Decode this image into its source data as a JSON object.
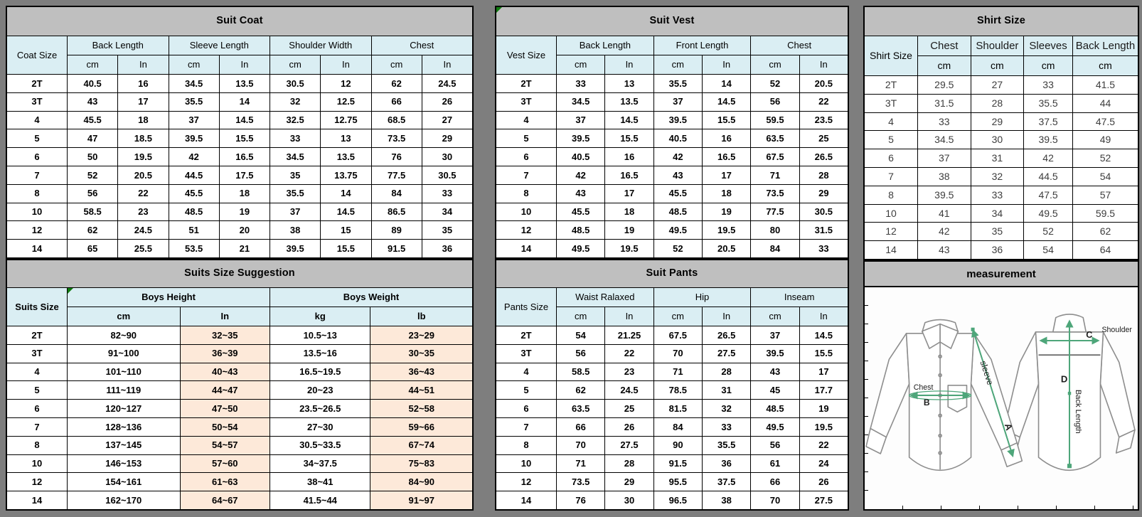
{
  "colors": {
    "page_background": "#7e7e7e",
    "title_bar": "#bfbfbf",
    "header_blue": "#daeef3",
    "highlight_peach": "#fde9d9",
    "cell_white": "#ffffff",
    "grid_line": "#000000",
    "comment_corner_green": "#0f7a0f",
    "measure_arrow_green": "#4ea67a"
  },
  "tables": {
    "suit_coat": {
      "title": "Suit Coat",
      "corner": "Coat Size",
      "groups": [
        {
          "label": "Back Length",
          "units": [
            "cm",
            "In"
          ]
        },
        {
          "label": "Sleeve Length",
          "units": [
            "cm",
            "In"
          ]
        },
        {
          "label": "Shoulder Width",
          "units": [
            "cm",
            "In"
          ]
        },
        {
          "label": "Chest",
          "units": [
            "cm",
            "In"
          ]
        }
      ],
      "rows": [
        [
          "2T",
          "40.5",
          "16",
          "34.5",
          "13.5",
          "30.5",
          "12",
          "62",
          "24.5"
        ],
        [
          "3T",
          "43",
          "17",
          "35.5",
          "14",
          "32",
          "12.5",
          "66",
          "26"
        ],
        [
          "4",
          "45.5",
          "18",
          "37",
          "14.5",
          "32.5",
          "12.75",
          "68.5",
          "27"
        ],
        [
          "5",
          "47",
          "18.5",
          "39.5",
          "15.5",
          "33",
          "13",
          "73.5",
          "29"
        ],
        [
          "6",
          "50",
          "19.5",
          "42",
          "16.5",
          "34.5",
          "13.5",
          "76",
          "30"
        ],
        [
          "7",
          "52",
          "20.5",
          "44.5",
          "17.5",
          "35",
          "13.75",
          "77.5",
          "30.5"
        ],
        [
          "8",
          "56",
          "22",
          "45.5",
          "18",
          "35.5",
          "14",
          "84",
          "33"
        ],
        [
          "10",
          "58.5",
          "23",
          "48.5",
          "19",
          "37",
          "14.5",
          "86.5",
          "34"
        ],
        [
          "12",
          "62",
          "24.5",
          "51",
          "20",
          "38",
          "15",
          "89",
          "35"
        ],
        [
          "14",
          "65",
          "25.5",
          "53.5",
          "21",
          "39.5",
          "15.5",
          "91.5",
          "36"
        ]
      ]
    },
    "suits_suggestion": {
      "title": "Suits Size Suggestion",
      "corner": "Suits Size",
      "groups": [
        {
          "label": "Boys Height",
          "units": [
            "cm",
            "In"
          ]
        },
        {
          "label": "Boys Weight",
          "units": [
            "kg",
            "lb"
          ]
        }
      ],
      "rows": [
        [
          "2T",
          "82~90",
          "32~35",
          "10.5~13",
          "23~29"
        ],
        [
          "3T",
          "91~100",
          "36~39",
          "13.5~16",
          "30~35"
        ],
        [
          "4",
          "101~110",
          "40~43",
          "16.5~19.5",
          "36~43"
        ],
        [
          "5",
          "111~119",
          "44~47",
          "20~23",
          "44~51"
        ],
        [
          "6",
          "120~127",
          "47~50",
          "23.5~26.5",
          "52~58"
        ],
        [
          "7",
          "128~136",
          "50~54",
          "27~30",
          "59~66"
        ],
        [
          "8",
          "137~145",
          "54~57",
          "30.5~33.5",
          "67~74"
        ],
        [
          "10",
          "146~153",
          "57~60",
          "34~37.5",
          "75~83"
        ],
        [
          "12",
          "154~161",
          "61~63",
          "38~41",
          "84~90"
        ],
        [
          "14",
          "162~170",
          "64~67",
          "41.5~44",
          "91~97"
        ]
      ]
    },
    "suit_vest": {
      "title": "Suit Vest",
      "corner": "Vest Size",
      "groups": [
        {
          "label": "Back Length",
          "units": [
            "cm",
            "In"
          ]
        },
        {
          "label": "Front Length",
          "units": [
            "cm",
            "In"
          ]
        },
        {
          "label": "Chest",
          "units": [
            "cm",
            "In"
          ]
        }
      ],
      "rows": [
        [
          "2T",
          "33",
          "13",
          "35.5",
          "14",
          "52",
          "20.5"
        ],
        [
          "3T",
          "34.5",
          "13.5",
          "37",
          "14.5",
          "56",
          "22"
        ],
        [
          "4",
          "37",
          "14.5",
          "39.5",
          "15.5",
          "59.5",
          "23.5"
        ],
        [
          "5",
          "39.5",
          "15.5",
          "40.5",
          "16",
          "63.5",
          "25"
        ],
        [
          "6",
          "40.5",
          "16",
          "42",
          "16.5",
          "67.5",
          "26.5"
        ],
        [
          "7",
          "42",
          "16.5",
          "43",
          "17",
          "71",
          "28"
        ],
        [
          "8",
          "43",
          "17",
          "45.5",
          "18",
          "73.5",
          "29"
        ],
        [
          "10",
          "45.5",
          "18",
          "48.5",
          "19",
          "77.5",
          "30.5"
        ],
        [
          "12",
          "48.5",
          "19",
          "49.5",
          "19.5",
          "80",
          "31.5"
        ],
        [
          "14",
          "49.5",
          "19.5",
          "52",
          "20.5",
          "84",
          "33"
        ]
      ]
    },
    "suit_pants": {
      "title": "Suit Pants",
      "corner": "Pants Size",
      "groups": [
        {
          "label": "Waist Ralaxed",
          "units": [
            "cm",
            "In"
          ]
        },
        {
          "label": "Hip",
          "units": [
            "cm",
            "In"
          ]
        },
        {
          "label": "Inseam",
          "units": [
            "cm",
            "In"
          ]
        }
      ],
      "rows": [
        [
          "2T",
          "54",
          "21.25",
          "67.5",
          "26.5",
          "37",
          "14.5"
        ],
        [
          "3T",
          "56",
          "22",
          "70",
          "27.5",
          "39.5",
          "15.5"
        ],
        [
          "4",
          "58.5",
          "23",
          "71",
          "28",
          "43",
          "17"
        ],
        [
          "5",
          "62",
          "24.5",
          "78.5",
          "31",
          "45",
          "17.7"
        ],
        [
          "6",
          "63.5",
          "25",
          "81.5",
          "32",
          "48.5",
          "19"
        ],
        [
          "7",
          "66",
          "26",
          "84",
          "33",
          "49.5",
          "19.5"
        ],
        [
          "8",
          "70",
          "27.5",
          "90",
          "35.5",
          "56",
          "22"
        ],
        [
          "10",
          "71",
          "28",
          "91.5",
          "36",
          "61",
          "24"
        ],
        [
          "12",
          "73.5",
          "29",
          "95.5",
          "37.5",
          "66",
          "26"
        ],
        [
          "14",
          "76",
          "30",
          "96.5",
          "38",
          "70",
          "27.5"
        ]
      ]
    },
    "shirt_size": {
      "title": "Shirt Size",
      "corner": "Shirt Size",
      "groups": [
        {
          "label": "Chest",
          "units": [
            "cm"
          ]
        },
        {
          "label": "Shoulder",
          "units": [
            "cm"
          ]
        },
        {
          "label": "Sleeves",
          "units": [
            "cm"
          ]
        },
        {
          "label": "Back Length",
          "units": [
            "cm"
          ]
        }
      ],
      "rows": [
        [
          "2T",
          "29.5",
          "27",
          "33",
          "41.5"
        ],
        [
          "3T",
          "31.5",
          "28",
          "35.5",
          "44"
        ],
        [
          "4",
          "33",
          "29",
          "37.5",
          "47.5"
        ],
        [
          "5",
          "34.5",
          "30",
          "39.5",
          "49"
        ],
        [
          "6",
          "37",
          "31",
          "42",
          "52"
        ],
        [
          "7",
          "38",
          "32",
          "44.5",
          "54"
        ],
        [
          "8",
          "39.5",
          "33",
          "47.5",
          "57"
        ],
        [
          "10",
          "41",
          "34",
          "49.5",
          "59.5"
        ],
        [
          "12",
          "42",
          "35",
          "52",
          "62"
        ],
        [
          "14",
          "43",
          "36",
          "54",
          "64"
        ]
      ]
    }
  },
  "measurement": {
    "title": "measurement",
    "labels": {
      "chest": "Chest",
      "chest_letter": "B",
      "sleeve": "sleeve",
      "sleeve_letter": "A",
      "shoulder": "Shoulder",
      "shoulder_letter": "C",
      "back_length": "Back Length",
      "back_length_letter": "D"
    }
  }
}
